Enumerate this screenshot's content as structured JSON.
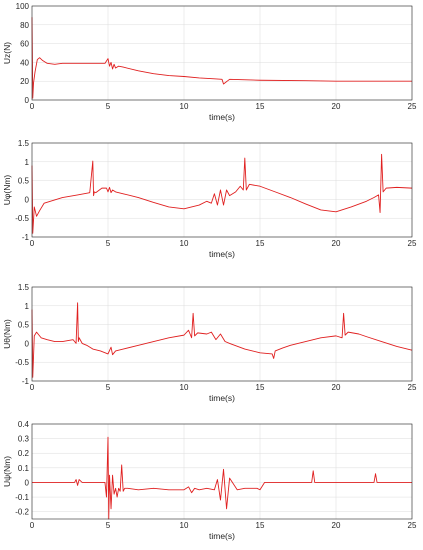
{
  "chart_data": [
    {
      "type": "line",
      "xlabel": "time(s)",
      "ylabel": "Uz(N)",
      "xlim": [
        0,
        25
      ],
      "ylim": [
        0,
        100
      ],
      "xticks": [
        0,
        5,
        10,
        15,
        20,
        25
      ],
      "yticks": [
        0,
        20,
        40,
        60,
        80,
        100
      ],
      "xtick_labels": [
        "0",
        "5",
        "10",
        "15",
        "20",
        "25"
      ],
      "ytick_labels": [
        "0",
        "20",
        "40",
        "60",
        "80",
        "100"
      ],
      "grid": true,
      "series": [
        {
          "color": "#e02020",
          "x": [
            0,
            0.05,
            0.1,
            0.2,
            0.35,
            0.5,
            0.7,
            1.0,
            1.5,
            2,
            3,
            4,
            4.8,
            5.0,
            5.1,
            5.2,
            5.3,
            5.4,
            5.5,
            5.7,
            6,
            7,
            8,
            9,
            10,
            11,
            12,
            12.5,
            12.6,
            13,
            15,
            18,
            20,
            22,
            25
          ],
          "y": [
            88,
            2,
            18,
            30,
            43,
            45,
            42,
            39,
            38,
            39,
            39,
            39,
            39,
            44,
            36,
            40,
            33,
            38,
            34,
            36,
            35,
            31,
            28,
            26,
            25,
            23.5,
            22.5,
            22,
            17,
            22,
            21,
            20.5,
            20,
            20,
            20
          ]
        }
      ]
    },
    {
      "type": "line",
      "xlabel": "time(s)",
      "ylabel": "Uφ(Nm)",
      "xlim": [
        0,
        25
      ],
      "ylim": [
        -1,
        1.5
      ],
      "xticks": [
        0,
        5,
        10,
        15,
        20,
        25
      ],
      "yticks": [
        -1,
        -0.5,
        0,
        0.5,
        1,
        1.5
      ],
      "xtick_labels": [
        "0",
        "5",
        "10",
        "15",
        "20",
        "25"
      ],
      "ytick_labels": [
        "-1",
        "-0.5",
        "0",
        "0.5",
        "1",
        "1.5"
      ],
      "grid": true,
      "series": [
        {
          "color": "#e02020",
          "x": [
            0,
            0.05,
            0.15,
            0.3,
            0.5,
            0.8,
            1.2,
            2,
            3,
            3.8,
            4.0,
            4.05,
            4.1,
            4.2,
            4.6,
            4.9,
            5.0,
            5.1,
            5.2,
            5.3,
            5.5,
            6,
            7,
            8,
            9,
            10,
            11,
            11.5,
            11.8,
            12.0,
            12.2,
            12.4,
            12.6,
            12.8,
            13,
            13.4,
            13.7,
            13.9,
            14.0,
            14.1,
            14.3,
            15,
            16,
            17,
            18,
            19,
            20,
            21,
            22,
            22.5,
            22.8,
            22.9,
            23.0,
            23.1,
            23.3,
            24,
            25
          ],
          "y": [
            0.9,
            -0.9,
            -0.2,
            -0.45,
            -0.3,
            -0.1,
            -0.05,
            0.05,
            0.12,
            0.18,
            1.02,
            0.1,
            0.2,
            0.18,
            0.3,
            0.3,
            0.2,
            0.32,
            0.18,
            0.25,
            0.2,
            0.15,
            0.05,
            -0.08,
            -0.2,
            -0.25,
            -0.15,
            -0.05,
            -0.1,
            0.15,
            -0.15,
            0.25,
            -0.15,
            0.25,
            0.1,
            0.2,
            0.35,
            0.25,
            1.1,
            0.25,
            0.4,
            0.35,
            0.2,
            0.05,
            -0.12,
            -0.28,
            -0.33,
            -0.2,
            -0.05,
            0.05,
            0.12,
            -0.35,
            1.2,
            0.2,
            0.3,
            0.32,
            0.3
          ]
        }
      ]
    },
    {
      "type": "line",
      "xlabel": "time(s)",
      "ylabel": "Uθ(Nm)",
      "xlim": [
        0,
        25
      ],
      "ylim": [
        -1,
        1.5
      ],
      "xticks": [
        0,
        5,
        10,
        15,
        20,
        25
      ],
      "yticks": [
        -1,
        -0.5,
        0,
        0.5,
        1,
        1.5
      ],
      "xtick_labels": [
        "0",
        "5",
        "10",
        "15",
        "20",
        "25"
      ],
      "ytick_labels": [
        "-1",
        "-0.5",
        "0",
        "0.5",
        "1",
        "1.5"
      ],
      "grid": true,
      "series": [
        {
          "color": "#e02020",
          "x": [
            0,
            0.05,
            0.15,
            0.3,
            0.6,
            1,
            1.5,
            2,
            2.7,
            2.9,
            3.0,
            3.05,
            3.1,
            3.3,
            3.6,
            4,
            4.5,
            5,
            5.2,
            5.3,
            5.5,
            6,
            7,
            8,
            9,
            10,
            10.3,
            10.5,
            10.6,
            10.7,
            10.9,
            11.5,
            11.8,
            12.1,
            12.4,
            12.7,
            13,
            14,
            15,
            15.8,
            15.9,
            16.0,
            16.5,
            17,
            18,
            19,
            20,
            20.4,
            20.5,
            20.6,
            20.8,
            21.5,
            22,
            23,
            24,
            25
          ],
          "y": [
            0.9,
            -0.9,
            0.2,
            0.3,
            0.15,
            0.1,
            0.05,
            0.05,
            0.1,
            0.0,
            1.08,
            0.05,
            0.15,
            0.0,
            -0.05,
            -0.15,
            -0.2,
            -0.28,
            -0.1,
            -0.3,
            -0.2,
            -0.15,
            -0.05,
            0.05,
            0.15,
            0.22,
            0.35,
            0.15,
            0.8,
            0.2,
            0.28,
            0.25,
            0.3,
            0.1,
            0.25,
            0.05,
            0.0,
            -0.15,
            -0.25,
            -0.28,
            -0.4,
            -0.2,
            -0.12,
            -0.05,
            0.05,
            0.15,
            0.2,
            0.15,
            0.8,
            0.22,
            0.3,
            0.25,
            0.18,
            0.05,
            -0.08,
            -0.18
          ]
        }
      ]
    },
    {
      "type": "line",
      "xlabel": "time(s)",
      "ylabel": "Uψ(Nm)",
      "xlim": [
        0,
        25
      ],
      "ylim": [
        -0.25,
        0.4
      ],
      "xticks": [
        0,
        5,
        10,
        15,
        20,
        25
      ],
      "yticks": [
        -0.2,
        -0.1,
        0,
        0.1,
        0.2,
        0.3,
        0.4
      ],
      "xtick_labels": [
        "0",
        "5",
        "10",
        "15",
        "20",
        "25"
      ],
      "ytick_labels": [
        "-0.2",
        "-0.1",
        "0",
        "0.1",
        "0.2",
        "0.3",
        "0.4"
      ],
      "grid": true,
      "series": [
        {
          "color": "#e02020",
          "x": [
            0,
            1,
            2,
            2.8,
            2.9,
            3.0,
            3.1,
            3.3,
            4,
            4.8,
            4.9,
            5.0,
            5.05,
            5.1,
            5.2,
            5.3,
            5.4,
            5.5,
            5.6,
            5.7,
            5.8,
            5.9,
            6.0,
            6.1,
            6.3,
            7,
            8,
            9,
            10,
            10.3,
            10.5,
            10.7,
            11,
            11.5,
            12,
            12.2,
            12.4,
            12.6,
            12.8,
            13,
            13.5,
            14,
            14.8,
            15,
            15.3,
            16,
            17,
            18,
            18.4,
            18.5,
            18.6,
            19,
            20,
            21,
            22,
            22.5,
            22.6,
            22.7,
            23,
            24,
            25
          ],
          "y": [
            0.0,
            0.0,
            0.0,
            0.0,
            0.02,
            -0.02,
            0.02,
            0.0,
            0.0,
            0.0,
            -0.1,
            0.31,
            -0.25,
            0.05,
            -0.18,
            0.05,
            -0.08,
            -0.04,
            -0.1,
            -0.04,
            -0.06,
            0.12,
            -0.06,
            -0.04,
            -0.04,
            -0.05,
            -0.04,
            -0.05,
            -0.05,
            -0.03,
            -0.07,
            -0.04,
            -0.05,
            -0.04,
            -0.05,
            0.02,
            -0.12,
            0.09,
            -0.18,
            0.03,
            -0.05,
            -0.04,
            -0.04,
            -0.05,
            0.0,
            0.0,
            0.0,
            0.0,
            0.0,
            0.08,
            0.0,
            0.0,
            0.0,
            0.0,
            0.0,
            0.0,
            0.06,
            0.0,
            0.0,
            0.0,
            0.0
          ]
        }
      ]
    }
  ]
}
